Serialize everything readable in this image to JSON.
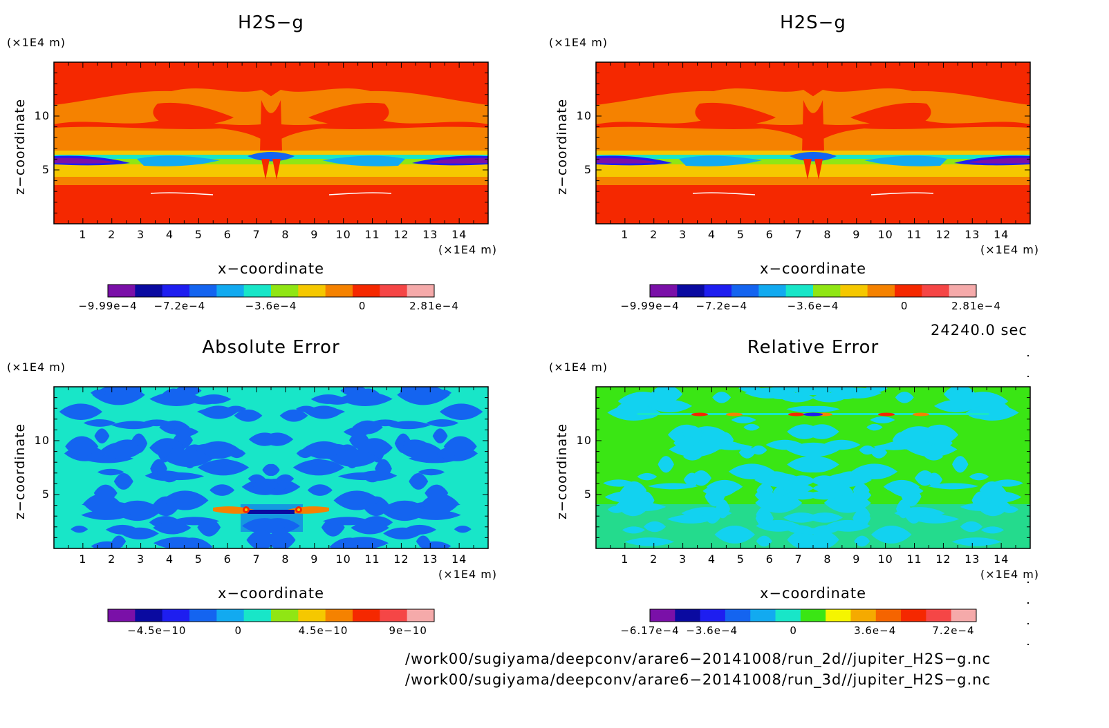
{
  "panels": [
    {
      "title": "H2S−g",
      "unit_top": "(×1E4 m)",
      "unit_bottom": "(×1E4 m)",
      "xlabel": "x−coordinate",
      "ylabel": "z−coordinate",
      "field": "h2s",
      "colorbar": {
        "colors": [
          "#7a10a8",
          "#0a0aa0",
          "#1e1ef0",
          "#1464f0",
          "#12aaf0",
          "#18e6c8",
          "#90e614",
          "#f5c800",
          "#f58200",
          "#f52800",
          "#f54646",
          "#f5aaaa"
        ],
        "labels": [
          {
            "text": "−9.99e−4",
            "pos": 0.0
          },
          {
            "text": "−7.2e−4",
            "pos": 0.22
          },
          {
            "text": "−3.6e−4",
            "pos": 0.5
          },
          {
            "text": "0",
            "pos": 0.78
          },
          {
            "text": "2.81e−4",
            "pos": 1.0
          }
        ]
      }
    },
    {
      "title": "H2S−g",
      "unit_top": "(×1E4 m)",
      "unit_bottom": "(×1E4 m)",
      "xlabel": "x−coordinate",
      "ylabel": "z−coordinate",
      "field": "h2s",
      "colorbar": {
        "colors": [
          "#7a10a8",
          "#0a0aa0",
          "#1e1ef0",
          "#1464f0",
          "#12aaf0",
          "#18e6c8",
          "#90e614",
          "#f5c800",
          "#f58200",
          "#f52800",
          "#f54646",
          "#f5aaaa"
        ],
        "labels": [
          {
            "text": "−9.99e−4",
            "pos": 0.0
          },
          {
            "text": "−7.2e−4",
            "pos": 0.22
          },
          {
            "text": "−3.6e−4",
            "pos": 0.5
          },
          {
            "text": "0",
            "pos": 0.78
          },
          {
            "text": "2.81e−4",
            "pos": 1.0
          }
        ]
      }
    },
    {
      "title": "Absolute Error",
      "unit_top": "(×1E4 m)",
      "unit_bottom": "(×1E4 m)",
      "xlabel": "x−coordinate",
      "ylabel": "z−coordinate",
      "field": "abs",
      "colorbar": {
        "colors": [
          "#7a10a8",
          "#0a0aa0",
          "#1e1ef0",
          "#1464f0",
          "#12aaf0",
          "#18e6c8",
          "#90e614",
          "#f5c800",
          "#f58200",
          "#f52800",
          "#f54646",
          "#f5aaaa"
        ],
        "labels": [
          {
            "text": "−4.5e−10",
            "pos": 0.15
          },
          {
            "text": "0",
            "pos": 0.4
          },
          {
            "text": "4.5e−10",
            "pos": 0.66
          },
          {
            "text": "9e−10",
            "pos": 0.92
          }
        ]
      }
    },
    {
      "title": "Relative Error",
      "unit_top": "(×1E4 m)",
      "unit_bottom": "(×1E4 m)",
      "xlabel": "x−coordinate",
      "ylabel": "z−coordinate",
      "field": "rel",
      "colorbar": {
        "colors": [
          "#7a10a8",
          "#0a0aa0",
          "#1e1ef0",
          "#1464f0",
          "#12aaf0",
          "#18e6c8",
          "#3ae614",
          "#f5f500",
          "#f5aa00",
          "#f56400",
          "#f52800",
          "#f54646",
          "#f5aaaa"
        ],
        "labels": [
          {
            "text": "−6.17e−4",
            "pos": 0.0
          },
          {
            "text": "−3.6e−4",
            "pos": 0.19
          },
          {
            "text": "0",
            "pos": 0.44
          },
          {
            "text": "3.6e−4",
            "pos": 0.69
          },
          {
            "text": "7.2e−4",
            "pos": 0.93
          }
        ]
      }
    }
  ],
  "chart_data": [
    {
      "type": "heatmap",
      "title": "H2S−g",
      "xlabel": "x−coordinate",
      "ylabel": "z−coordinate",
      "x_ticks": [
        1,
        2,
        3,
        4,
        5,
        6,
        7,
        8,
        9,
        10,
        11,
        12,
        13,
        14
      ],
      "y_ticks": [
        5,
        10
      ],
      "xlim": [
        0,
        15
      ],
      "ylim": [
        0,
        15
      ],
      "colorbar_ticks": [
        "−9.99e−4",
        "−7.2e−4",
        "−3.6e−4",
        "0",
        "2.81e−4"
      ]
    },
    {
      "type": "heatmap",
      "title": "H2S−g",
      "xlabel": "x−coordinate",
      "ylabel": "z−coordinate",
      "x_ticks": [
        1,
        2,
        3,
        4,
        5,
        6,
        7,
        8,
        9,
        10,
        11,
        12,
        13,
        14
      ],
      "y_ticks": [
        5,
        10
      ],
      "xlim": [
        0,
        15
      ],
      "ylim": [
        0,
        15
      ],
      "colorbar_ticks": [
        "−9.99e−4",
        "−7.2e−4",
        "−3.6e−4",
        "0",
        "2.81e−4"
      ]
    },
    {
      "type": "heatmap",
      "title": "Absolute Error",
      "xlabel": "x−coordinate",
      "ylabel": "z−coordinate",
      "x_ticks": [
        1,
        2,
        3,
        4,
        5,
        6,
        7,
        8,
        9,
        10,
        11,
        12,
        13,
        14
      ],
      "y_ticks": [
        5,
        10
      ],
      "xlim": [
        0,
        15
      ],
      "ylim": [
        0,
        15
      ],
      "colorbar_ticks": [
        "−4.5e−10",
        "0",
        "4.5e−10",
        "9e−10"
      ]
    },
    {
      "type": "heatmap",
      "title": "Relative Error",
      "xlabel": "x−coordinate",
      "ylabel": "z−coordinate",
      "x_ticks": [
        1,
        2,
        3,
        4,
        5,
        6,
        7,
        8,
        9,
        10,
        11,
        12,
        13,
        14
      ],
      "y_ticks": [
        5,
        10
      ],
      "xlim": [
        0,
        15
      ],
      "ylim": [
        0,
        15
      ],
      "colorbar_ticks": [
        "−6.17e−4",
        "−3.6e−4",
        "0",
        "3.6e−4",
        "7.2e−4"
      ]
    }
  ],
  "time_label": "24240.0 sec",
  "paths": [
    "/work00/sugiyama/deepconv/arare6−20141008/run_2d//jupiter_H2S−g.nc",
    "/work00/sugiyama/deepconv/arare6−20141008/run_3d//jupiter_H2S−g.nc"
  ]
}
